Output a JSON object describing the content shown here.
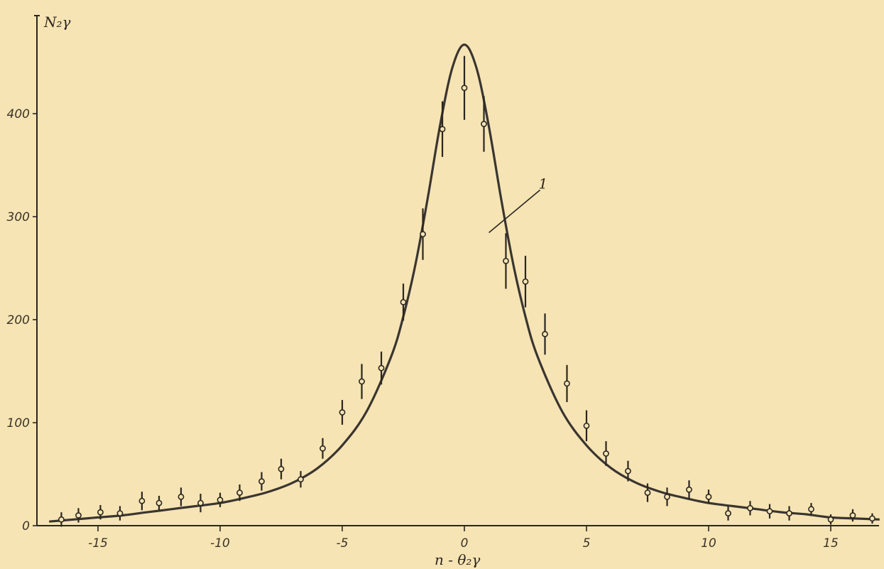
{
  "chart_data": {
    "type": "scatter",
    "title": "",
    "xlabel": "n - θ₂γ",
    "ylabel": "N₂γ",
    "xlim": [
      -17,
      17
    ],
    "ylim": [
      0,
      470
    ],
    "x_ticks": [
      -15,
      -10,
      -5,
      0,
      5,
      10,
      15
    ],
    "x_tick_labels": [
      "-15",
      "-10",
      "-5",
      "0",
      "5",
      "10",
      "15"
    ],
    "y_ticks": [
      0,
      100,
      200,
      300,
      400
    ],
    "y_tick_labels": [
      "0",
      "100",
      "200",
      "300",
      "400"
    ],
    "grid": false,
    "legend": "none",
    "annotation": {
      "text": "1",
      "x": 2.4,
      "y": 330
    },
    "series": [
      {
        "kind": "points-with-error-bars",
        "x": [
          -16.5,
          -15.8,
          -14.9,
          -14.1,
          -13.2,
          -12.5,
          -11.6,
          -10.8,
          -10.0,
          -9.2,
          -8.3,
          -7.5,
          -6.7,
          -5.8,
          -5.0,
          -4.2,
          -3.4,
          -2.5,
          -1.7,
          -0.9,
          0.0,
          0.8,
          1.7,
          2.5,
          3.3,
          4.2,
          5.0,
          5.8,
          6.7,
          7.5,
          8.3,
          9.2,
          10.0,
          10.8,
          11.7,
          12.5,
          13.3,
          14.2,
          15.0,
          15.9,
          16.7
        ],
        "y": [
          6,
          10,
          13,
          12,
          24,
          22,
          28,
          22,
          25,
          32,
          43,
          55,
          45,
          75,
          110,
          140,
          153,
          217,
          283,
          385,
          425,
          390,
          257,
          237,
          186,
          138,
          97,
          70,
          53,
          32,
          28,
          35,
          28,
          12,
          17,
          14,
          12,
          16,
          6,
          10,
          7
        ],
        "err": [
          7,
          7,
          7,
          7,
          9,
          7,
          9,
          9,
          7,
          8,
          9,
          10,
          8,
          10,
          12,
          17,
          16,
          18,
          25,
          27,
          31,
          27,
          27,
          25,
          20,
          18,
          15,
          12,
          10,
          9,
          9,
          9,
          7,
          7,
          7,
          7,
          7,
          6,
          5,
          6,
          5
        ]
      },
      {
        "kind": "fitted-curve",
        "peak_x": 0,
        "peak_y": 467,
        "x": [
          -17,
          -16,
          -15,
          -14,
          -13,
          -12,
          -11,
          -10,
          -9,
          -8,
          -7,
          -6,
          -5,
          -4,
          -3,
          -2.5,
          -2,
          -1.5,
          -1,
          -0.5,
          0,
          0.5,
          1,
          1.5,
          2,
          2.5,
          3,
          4,
          5,
          6,
          7,
          8,
          9,
          10,
          11,
          12,
          13,
          14,
          15,
          16,
          17
        ],
        "y": [
          4,
          6,
          8,
          10,
          13,
          16,
          19,
          22,
          27,
          33,
          42,
          56,
          78,
          111,
          164,
          203,
          254,
          318,
          388,
          444,
          467,
          444,
          388,
          318,
          254,
          203,
          164,
          111,
          78,
          56,
          42,
          33,
          27,
          22,
          19,
          16,
          13,
          11,
          8,
          7,
          6
        ]
      }
    ]
  }
}
